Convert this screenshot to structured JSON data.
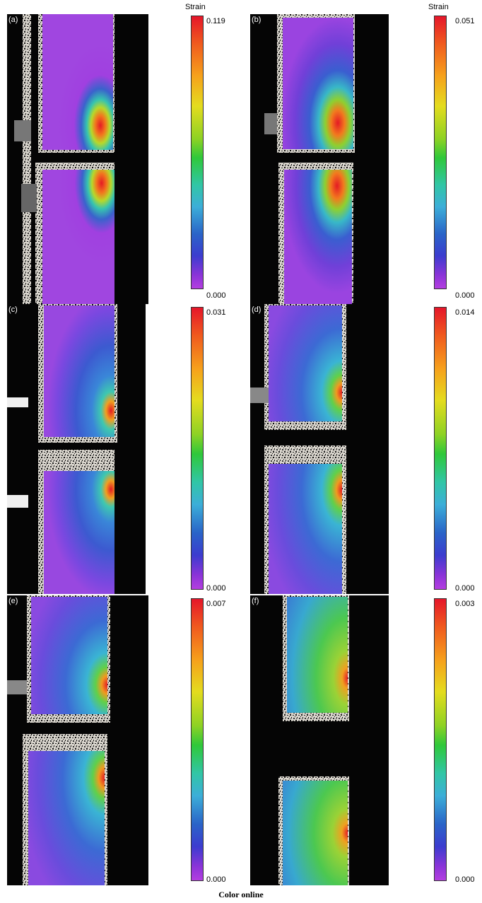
{
  "colorbar_title": "Strain",
  "panels": [
    {
      "label": "(a)",
      "max": "0.119",
      "min": "0.000"
    },
    {
      "label": "(b)",
      "max": "0.051",
      "min": "0.000"
    },
    {
      "label": "(c)",
      "max": "0.031",
      "min": "0.000"
    },
    {
      "label": "(d)",
      "max": "0.014",
      "min": "0.000"
    },
    {
      "label": "(e)",
      "max": "0.007",
      "min": "0.000"
    },
    {
      "label": "(f)",
      "max": "0.003",
      "min": "0.000"
    }
  ],
  "caption": "Color online"
}
